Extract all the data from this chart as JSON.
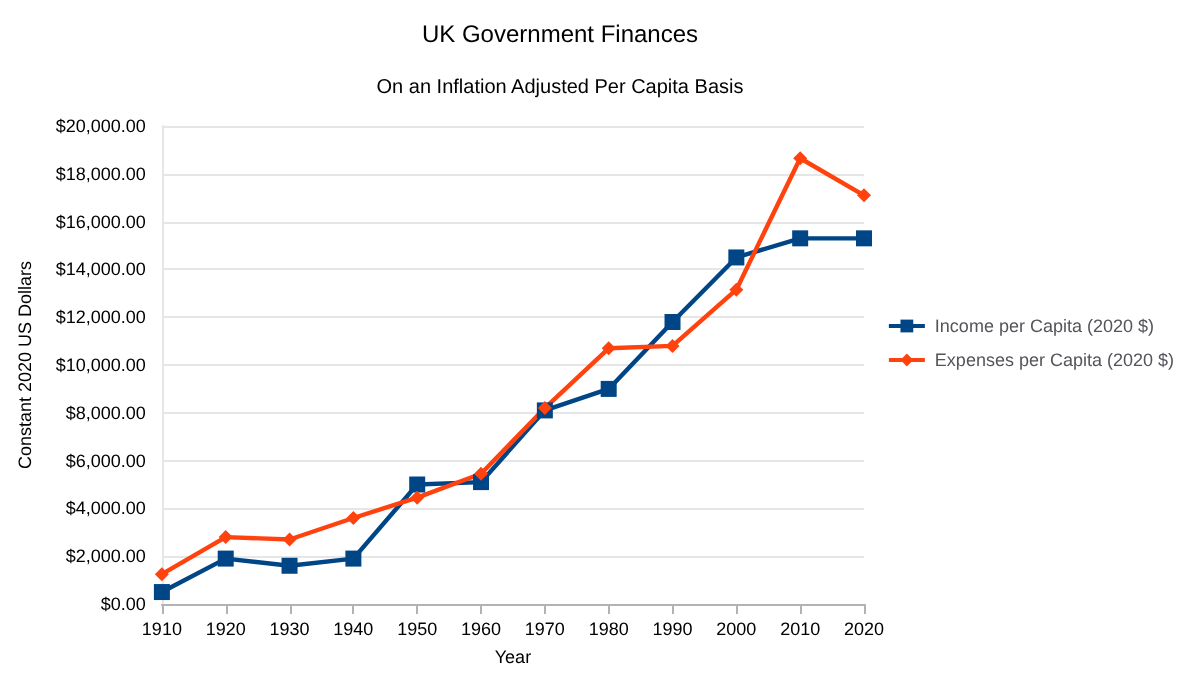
{
  "chart_data": {
    "type": "line",
    "title": "UK Government Finances",
    "subtitle": "On an Inflation Adjusted Per Capita Basis",
    "xlabel": "Year",
    "ylabel": "Constant 2020 US Dollars",
    "categories": [
      "1910",
      "1920",
      "1930",
      "1940",
      "1950",
      "1960",
      "1970",
      "1980",
      "1990",
      "2000",
      "2010",
      "2020"
    ],
    "series": [
      {
        "name": "Income per Capita (2020 $)",
        "color": "#004586",
        "marker": "square",
        "values": [
          500,
          1900,
          1600,
          1900,
          5000,
          5100,
          8100,
          9000,
          11800,
          14500,
          15300,
          15300
        ]
      },
      {
        "name": "Expenses per Capita (2020 $)",
        "color": "#ff420e",
        "marker": "diamond",
        "values": [
          1250,
          2800,
          2700,
          3600,
          4450,
          5450,
          8200,
          10700,
          10800,
          13150,
          18650,
          17100
        ]
      }
    ],
    "ylim": [
      0,
      20000
    ],
    "yticks": [
      {
        "value": 0,
        "label": "$0.00"
      },
      {
        "value": 2000,
        "label": "$2,000.00"
      },
      {
        "value": 4000,
        "label": "$4,000.00"
      },
      {
        "value": 6000,
        "label": "$6,000.00"
      },
      {
        "value": 8000,
        "label": "$8,000.00"
      },
      {
        "value": 10000,
        "label": "$10,000.00"
      },
      {
        "value": 12000,
        "label": "$12,000.00"
      },
      {
        "value": 14000,
        "label": "$14,000.00"
      },
      {
        "value": 16000,
        "label": "$16,000.00"
      },
      {
        "value": 18000,
        "label": "$18,000.00"
      },
      {
        "value": 20000,
        "label": "$20,000.00"
      }
    ],
    "grid": "y",
    "legend": "right"
  }
}
